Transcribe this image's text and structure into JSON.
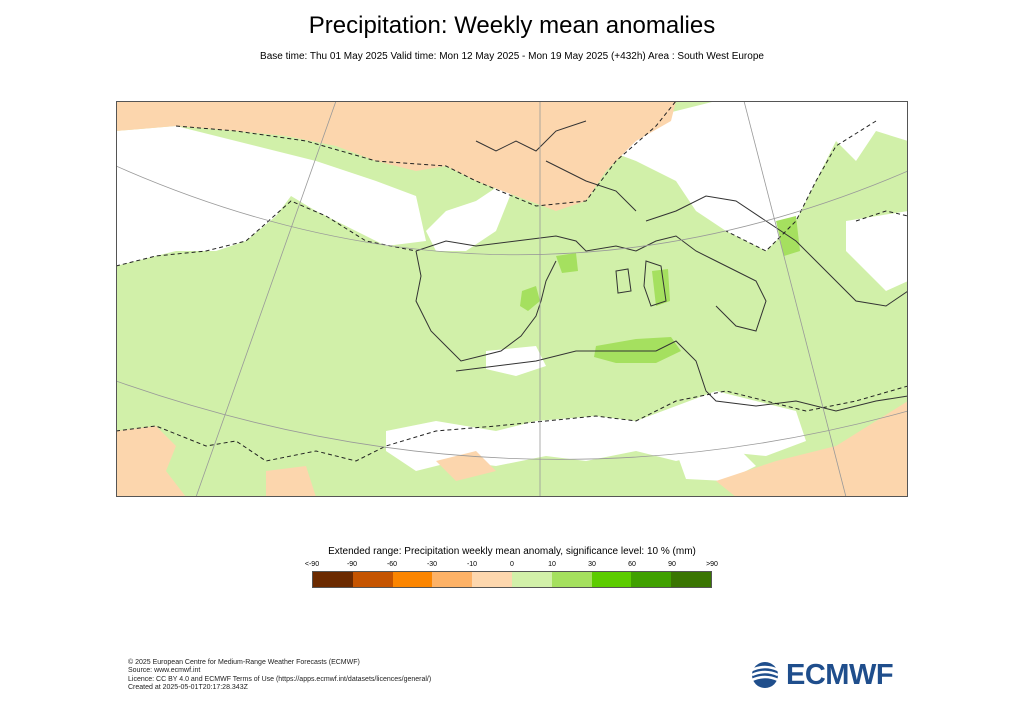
{
  "header": {
    "title": "Precipitation: Weekly mean anomalies",
    "subtitle": "Base time: Thu 01 May 2025 Valid time: Mon 12 May 2025 - Mon 19 May 2025 (+432h) Area : South West Europe"
  },
  "map": {
    "area": "South West Europe",
    "colors": {
      "positive_anomaly": "#d1f0a9",
      "positive_significant": "#a5e05f",
      "negative_anomaly": "#fcd6ad",
      "negative_significant": "#f9a040",
      "no_signal": "#ffffff",
      "border": "#333333",
      "graticule": "#999999"
    }
  },
  "legend": {
    "title": "Extended range: Precipitation weekly mean anomaly, significance level: 10 % (mm)",
    "ticks": [
      "<-90",
      "-90",
      "-60",
      "-30",
      "-10",
      "0",
      "10",
      "30",
      "60",
      "90",
      ">90"
    ],
    "colors": [
      "#6b2a00",
      "#c55400",
      "#fb8500",
      "#fdb267",
      "#fdd7ae",
      "#d2f0a9",
      "#a5e05f",
      "#5ccc00",
      "#40a000",
      "#3a7502"
    ]
  },
  "footer": {
    "lines": [
      "© 2025 European Centre for Medium-Range Weather Forecasts (ECMWF)",
      "Source: www.ecmwf.int",
      "Licence: CC BY 4.0 and ECMWF Terms of Use (https://apps.ecmwf.int/datasets/licences/general/)",
      "Created at 2025-05-01T20:17:28.343Z"
    ]
  },
  "logo": {
    "text": "ECMWF",
    "color": "#1f4e8c"
  }
}
